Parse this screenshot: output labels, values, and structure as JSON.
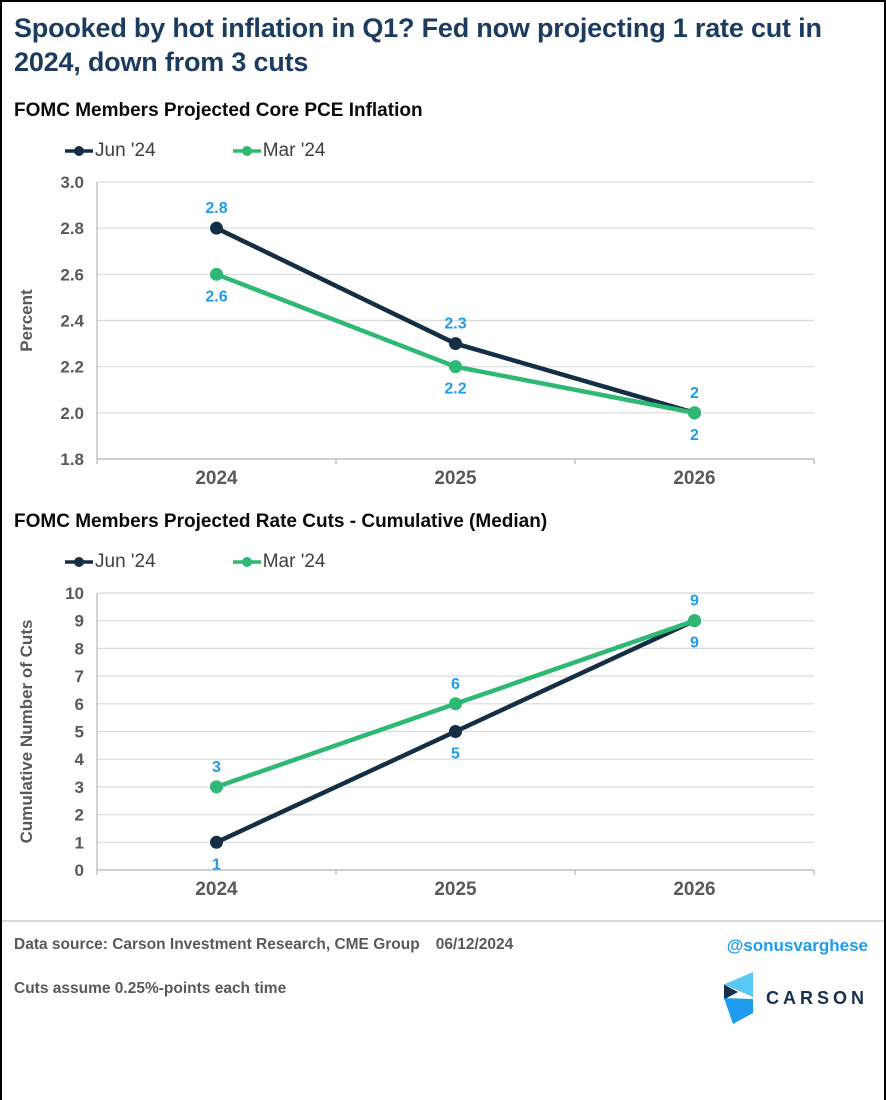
{
  "title": "Spooked by hot inflation in Q1? Fed now projecting 1 rate cut in 2024, down from 3 cuts",
  "colors": {
    "title_navy": "#1B3C5F",
    "series_navy": "#142E45",
    "series_green": "#2DB874",
    "data_label_blue": "#1E9CEC",
    "axis_gray": "#595959",
    "gridline_gray": "#DBDBDB"
  },
  "chart_data": [
    {
      "type": "line",
      "title": "FOMC Members Projected Core PCE Inflation",
      "categories": [
        "2024",
        "2025",
        "2026"
      ],
      "series": [
        {
          "name": "Jun '24",
          "color": "#142E45",
          "values": [
            2.8,
            2.3,
            2.0
          ],
          "labels": [
            "2.8",
            "2.3",
            "2"
          ],
          "label_position": "above"
        },
        {
          "name": "Mar '24",
          "color": "#2DB874",
          "values": [
            2.6,
            2.2,
            2.0
          ],
          "labels": [
            "2.6",
            "2.2",
            "2"
          ],
          "label_position": "below"
        }
      ],
      "xlabel": "",
      "ylabel": "Percent",
      "ylim": [
        1.8,
        3.0
      ],
      "ytick_labels": [
        "1.8",
        "2.0",
        "2.2",
        "2.4",
        "2.6",
        "2.8",
        "3.0"
      ],
      "grid": true,
      "legend_position": "top"
    },
    {
      "type": "line",
      "title": "FOMC Members Projected Rate Cuts - Cumulative (Median)",
      "categories": [
        "2024",
        "2025",
        "2026"
      ],
      "series": [
        {
          "name": "Jun '24",
          "color": "#142E45",
          "values": [
            1,
            5,
            9
          ],
          "labels": [
            "1",
            "5",
            "9"
          ],
          "label_position": "below"
        },
        {
          "name": "Mar '24",
          "color": "#2DB874",
          "values": [
            3,
            6,
            9
          ],
          "labels": [
            "3",
            "6",
            "9"
          ],
          "label_position": "above"
        }
      ],
      "xlabel": "",
      "ylabel": "Cumulative Number of Cuts",
      "ylim": [
        0,
        10
      ],
      "ytick_labels": [
        "0",
        "1",
        "2",
        "3",
        "4",
        "5",
        "6",
        "7",
        "8",
        "9",
        "10"
      ],
      "grid": true,
      "legend_position": "top"
    }
  ],
  "footer": {
    "source": "Data source: Carson Investment Research, CME Group",
    "date": "06/12/2024",
    "note": "Cuts assume 0.25%-points each time",
    "handle": "@sonusvarghese",
    "brand": "CARSON"
  }
}
